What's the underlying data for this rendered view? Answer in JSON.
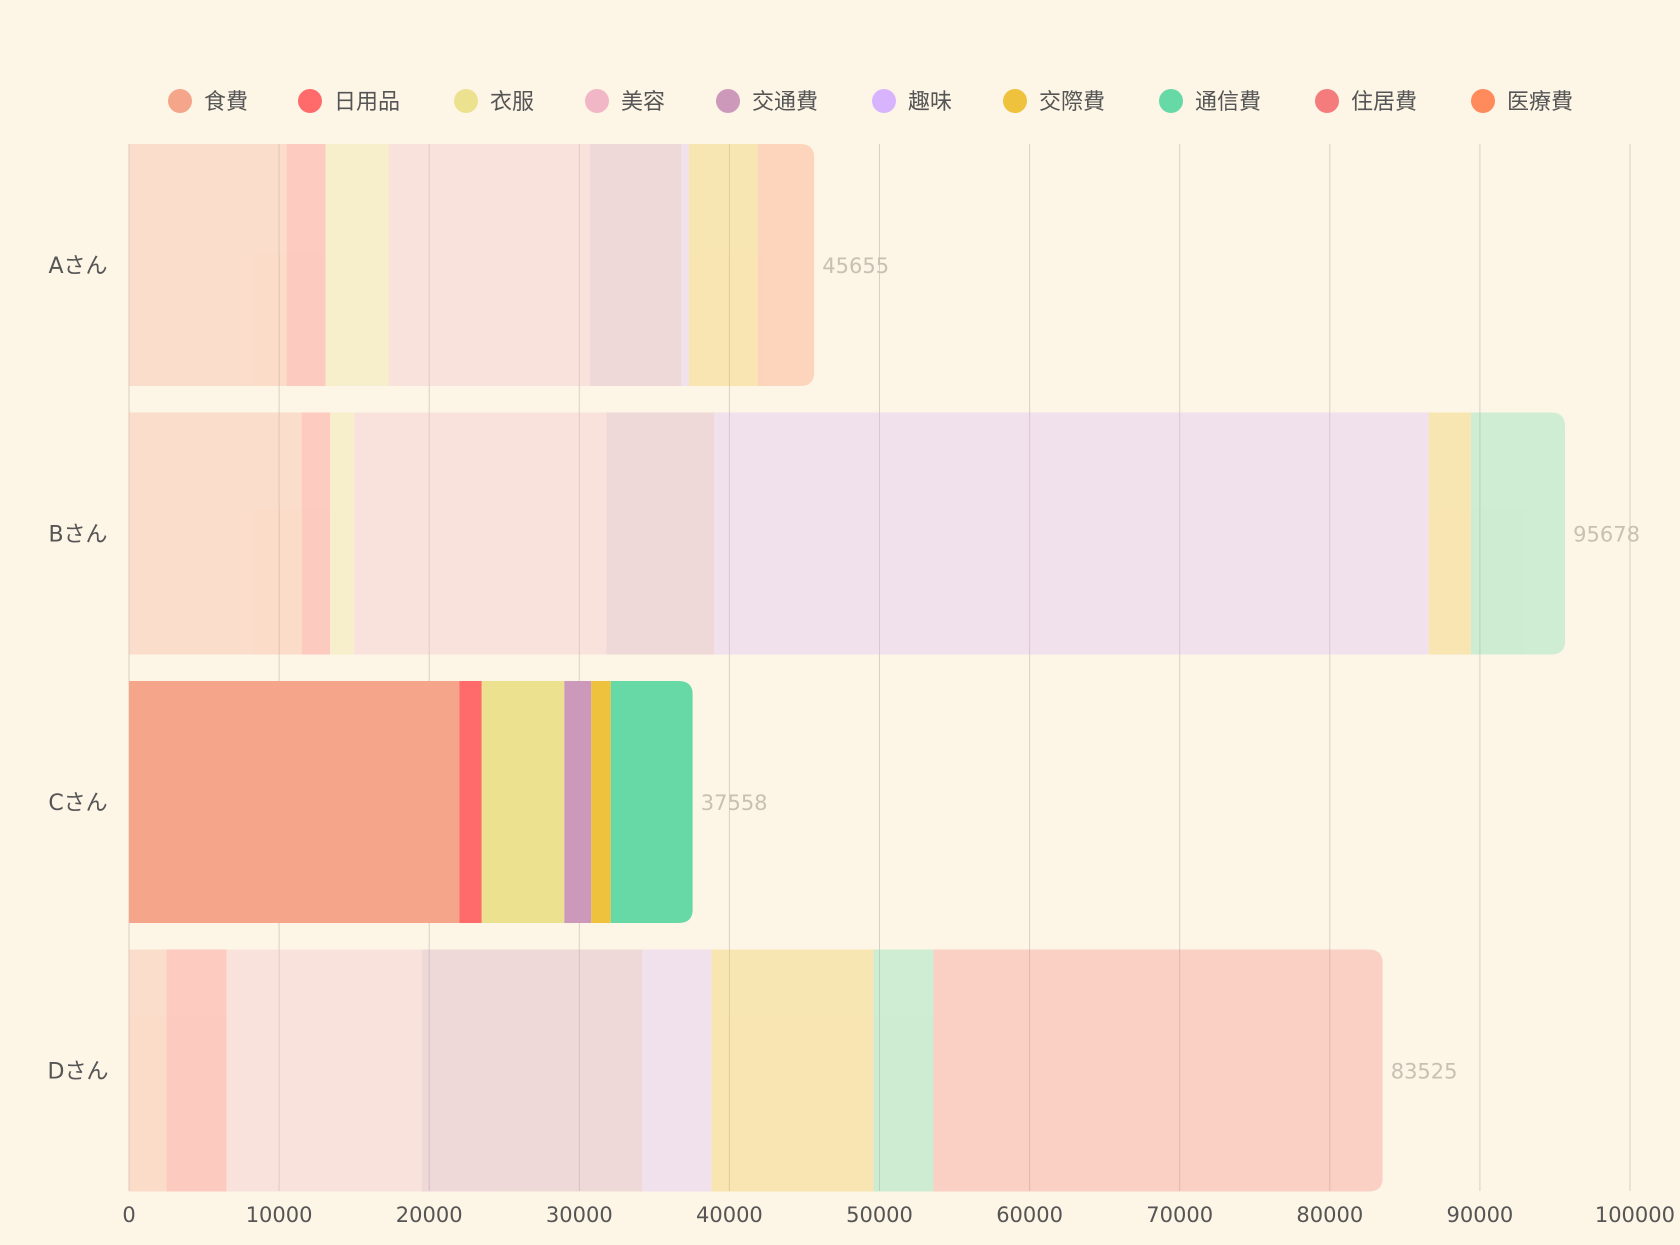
{
  "chart_data": {
    "type": "bar",
    "orientation": "horizontal",
    "stacked": true,
    "categories": [
      "Aさん",
      "Bさん",
      "Cさん",
      "Dさん"
    ],
    "highlighted_category": "Cさん",
    "legend_position": "top",
    "grid": true,
    "xlim": [
      0,
      100000
    ],
    "xticks": [
      0,
      10000,
      20000,
      30000,
      40000,
      50000,
      60000,
      70000,
      80000,
      90000,
      100000
    ],
    "totals": [
      45655,
      95678,
      37558,
      83525
    ],
    "series": [
      {
        "name": "食費",
        "color": "#f4a58a",
        "values": [
          10500,
          11500,
          22000,
          2500
        ]
      },
      {
        "name": "日用品",
        "color": "#ff6b6b",
        "values": [
          2600,
          1900,
          1500,
          4000
        ]
      },
      {
        "name": "衣服",
        "color": "#ece18f",
        "values": [
          4200,
          1600,
          5500,
          0
        ]
      },
      {
        "name": "美容",
        "color": "#f2b7c6",
        "values": [
          13400,
          16800,
          0,
          13000
        ]
      },
      {
        "name": "交通費",
        "color": "#cc99bb",
        "values": [
          6100,
          7200,
          1800,
          14700
        ]
      },
      {
        "name": "趣味",
        "color": "#d8b4fe",
        "values": [
          500,
          47600,
          0,
          4600
        ]
      },
      {
        "name": "交際費",
        "color": "#eec23c",
        "values": [
          4600,
          2800,
          1300,
          10800
        ]
      },
      {
        "name": "通信費",
        "color": "#66d9a6",
        "values": [
          0,
          6278,
          5458,
          4000
        ]
      },
      {
        "name": "住居費",
        "color": "#f47c7c",
        "values": [
          0,
          0,
          0,
          29925
        ]
      },
      {
        "name": "医療費",
        "color": "#ff8a5c",
        "values": [
          3755,
          0,
          0,
          0
        ]
      }
    ]
  }
}
